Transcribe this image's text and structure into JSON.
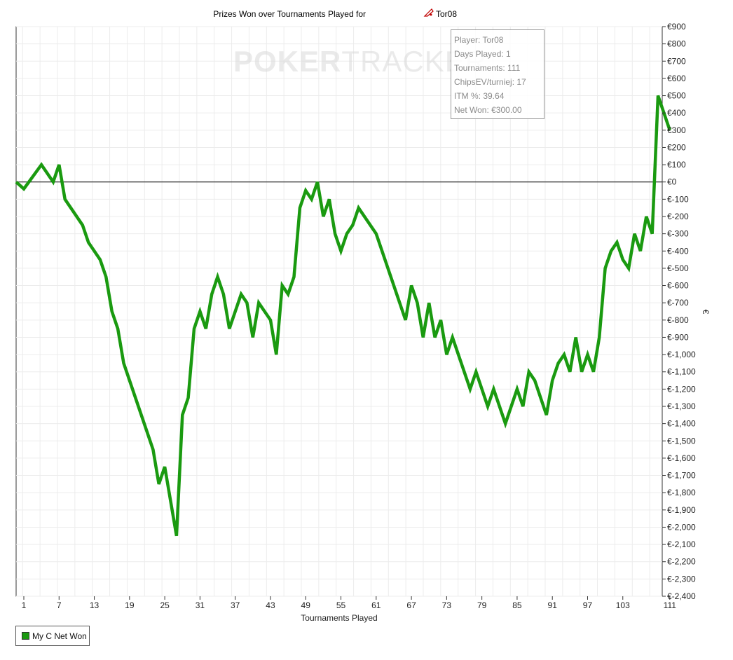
{
  "chart_data": {
    "type": "line",
    "title": "Prizes Won over Tournaments Played for",
    "player_name": "Tor08",
    "xlabel": "Tournaments Played",
    "ylabel": "€",
    "xlim": [
      0,
      112
    ],
    "ylim": [
      -2400,
      900
    ],
    "x_ticks": [
      1,
      7,
      13,
      19,
      25,
      31,
      37,
      43,
      49,
      55,
      61,
      67,
      73,
      79,
      85,
      91,
      97,
      103,
      111
    ],
    "y_ticks": [
      {
        "value": 900,
        "label": "€900"
      },
      {
        "value": 800,
        "label": "€800"
      },
      {
        "value": 700,
        "label": "€700"
      },
      {
        "value": 600,
        "label": "€600"
      },
      {
        "value": 500,
        "label": "€500"
      },
      {
        "value": 400,
        "label": "€400"
      },
      {
        "value": 300,
        "label": "€300"
      },
      {
        "value": 200,
        "label": "€200"
      },
      {
        "value": 100,
        "label": "€100"
      },
      {
        "value": 0,
        "label": "€0"
      },
      {
        "value": -100,
        "label": "€-100"
      },
      {
        "value": -200,
        "label": "€-200"
      },
      {
        "value": -300,
        "label": "€-300"
      },
      {
        "value": -400,
        "label": "€-400"
      },
      {
        "value": -500,
        "label": "€-500"
      },
      {
        "value": -600,
        "label": "€-600"
      },
      {
        "value": -700,
        "label": "€-700"
      },
      {
        "value": -800,
        "label": "€-800"
      },
      {
        "value": -900,
        "label": "€-900"
      },
      {
        "value": -1000,
        "label": "€-1,000"
      },
      {
        "value": -1100,
        "label": "€-1,100"
      },
      {
        "value": -1200,
        "label": "€-1,200"
      },
      {
        "value": -1300,
        "label": "€-1,300"
      },
      {
        "value": -1400,
        "label": "€-1,400"
      },
      {
        "value": -1500,
        "label": "€-1,500"
      },
      {
        "value": -1600,
        "label": "€-1,600"
      },
      {
        "value": -1700,
        "label": "€-1,700"
      },
      {
        "value": -1800,
        "label": "€-1,800"
      },
      {
        "value": -1900,
        "label": "€-1,900"
      },
      {
        "value": -2000,
        "label": "€-2,000"
      },
      {
        "value": -2100,
        "label": "€-2,100"
      },
      {
        "value": -2200,
        "label": "€-2,200"
      },
      {
        "value": -2300,
        "label": "€-2,300"
      },
      {
        "value": -2400,
        "label": "€-2,400"
      }
    ],
    "grid": true,
    "series": [
      {
        "name": "My C Net Won",
        "color": "#1a9a10",
        "points": [
          [
            0,
            0
          ],
          [
            1,
            -40
          ],
          [
            4,
            100
          ],
          [
            6,
            0
          ],
          [
            7,
            100
          ],
          [
            8,
            -100
          ],
          [
            11,
            -250
          ],
          [
            12,
            -350
          ],
          [
            14,
            -450
          ],
          [
            15,
            -550
          ],
          [
            16,
            -750
          ],
          [
            17,
            -850
          ],
          [
            18,
            -1050
          ],
          [
            23,
            -1550
          ],
          [
            24,
            -1750
          ],
          [
            25,
            -1650
          ],
          [
            27,
            -2050
          ],
          [
            28,
            -1350
          ],
          [
            29,
            -1250
          ],
          [
            30,
            -850
          ],
          [
            31,
            -750
          ],
          [
            32,
            -850
          ],
          [
            33,
            -650
          ],
          [
            34,
            -550
          ],
          [
            35,
            -650
          ],
          [
            36,
            -850
          ],
          [
            38,
            -650
          ],
          [
            39,
            -700
          ],
          [
            40,
            -900
          ],
          [
            41,
            -700
          ],
          [
            43,
            -800
          ],
          [
            44,
            -1000
          ],
          [
            45,
            -600
          ],
          [
            46,
            -650
          ],
          [
            47,
            -550
          ],
          [
            48,
            -150
          ],
          [
            49,
            -50
          ],
          [
            50,
            -100
          ],
          [
            51,
            0
          ],
          [
            52,
            -200
          ],
          [
            53,
            -100
          ],
          [
            54,
            -300
          ],
          [
            55,
            -400
          ],
          [
            56,
            -300
          ],
          [
            57,
            -250
          ],
          [
            58,
            -150
          ],
          [
            61,
            -300
          ],
          [
            66,
            -800
          ],
          [
            67,
            -600
          ],
          [
            68,
            -700
          ],
          [
            69,
            -900
          ],
          [
            70,
            -700
          ],
          [
            71,
            -900
          ],
          [
            72,
            -800
          ],
          [
            73,
            -1000
          ],
          [
            74,
            -900
          ],
          [
            77,
            -1200
          ],
          [
            78,
            -1100
          ],
          [
            80,
            -1300
          ],
          [
            81,
            -1200
          ],
          [
            83,
            -1400
          ],
          [
            85,
            -1200
          ],
          [
            86,
            -1300
          ],
          [
            87,
            -1100
          ],
          [
            88,
            -1150
          ],
          [
            90,
            -1350
          ],
          [
            91,
            -1150
          ],
          [
            92,
            -1050
          ],
          [
            93,
            -1000
          ],
          [
            94,
            -1100
          ],
          [
            95,
            -900
          ],
          [
            96,
            -1100
          ],
          [
            97,
            -1000
          ],
          [
            98,
            -1100
          ],
          [
            99,
            -900
          ],
          [
            100,
            -500
          ],
          [
            101,
            -400
          ],
          [
            102,
            -350
          ],
          [
            103,
            -450
          ],
          [
            104,
            -500
          ],
          [
            105,
            -300
          ],
          [
            106,
            -400
          ],
          [
            107,
            -200
          ],
          [
            108,
            -300
          ],
          [
            109,
            500
          ],
          [
            111,
            300
          ]
        ]
      }
    ],
    "legend": {
      "position": "bottom-left",
      "label": "My C Net Won"
    }
  },
  "stats": {
    "player": "Player: Tor08",
    "days_played": "Days Played: 1",
    "tournaments": "Tournaments: 111",
    "chips_ev": "ChipsEV/turniej: 17",
    "itm": "ITM %: 39.64",
    "net_won": "Net Won: €300.00"
  },
  "watermark": {
    "bold": "POKER",
    "light": "TRACKER"
  }
}
